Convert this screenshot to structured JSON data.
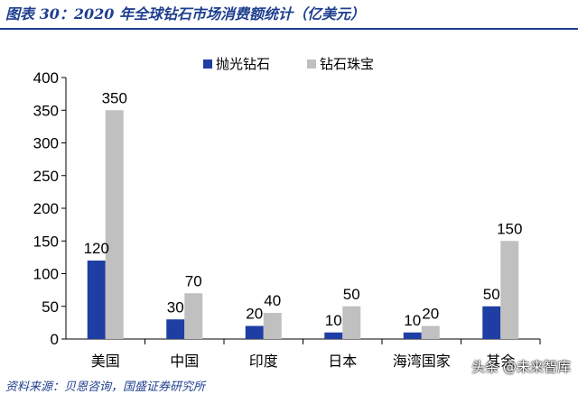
{
  "header": {
    "title": "图表 30：2020 年全球钻石市场消费额统计（亿美元）"
  },
  "footer": {
    "source": "资料来源：贝恩咨询，国盛证券研究所"
  },
  "watermark": {
    "text": "头条 @未来智库"
  },
  "colors": {
    "series_1": "#1f3ea3",
    "series_2": "#c0c0c0",
    "axis": "#000000"
  },
  "chart_data": {
    "type": "bar",
    "categories": [
      "美国",
      "中国",
      "印度",
      "日本",
      "海湾国家",
      "其余"
    ],
    "series": [
      {
        "name": "抛光钻石",
        "values": [
          120,
          30,
          20,
          10,
          10,
          50
        ]
      },
      {
        "name": "钻石珠宝",
        "values": [
          350,
          70,
          40,
          50,
          20,
          150
        ]
      }
    ],
    "ylim": [
      0,
      400
    ],
    "yticks": [
      0,
      50,
      100,
      150,
      200,
      250,
      300,
      350,
      400
    ],
    "legend": "top-center",
    "grid": false,
    "data_labels": true
  }
}
